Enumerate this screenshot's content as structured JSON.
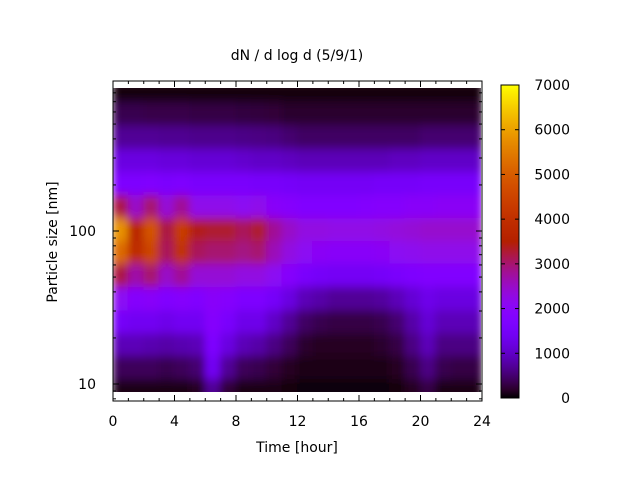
{
  "chart_data": {
    "type": "heatmap",
    "title": "dN / d log d (5/9/1)",
    "xlabel": "Time [hour]",
    "ylabel": "Particle size [nm]",
    "xlim": [
      0,
      24
    ],
    "ylim": [
      8,
      900
    ],
    "yscale": "log",
    "x_ticks": [
      "0",
      "4",
      "8",
      "12",
      "16",
      "20",
      "24"
    ],
    "y_ticks": [
      "10",
      "100"
    ],
    "colorbar": {
      "range": [
        0,
        7000
      ],
      "ticks": [
        "0",
        "1000",
        "2000",
        "3000",
        "4000",
        "5000",
        "6000",
        "7000"
      ],
      "palette": "black-purple-red-orange-yellow"
    },
    "time_bins_hour_start": [
      0,
      1,
      2,
      3,
      4,
      5,
      6,
      7,
      8,
      9,
      10,
      11,
      12,
      13,
      14,
      15,
      16,
      17,
      18,
      19,
      20,
      21,
      22,
      23
    ],
    "size_bins_nm": [
      818,
      577,
      407,
      287,
      203,
      143,
      101,
      72,
      51,
      36,
      25,
      18,
      12.7,
      9
    ],
    "values": [
      [
        60,
        60,
        60,
        60,
        60,
        60,
        60,
        60,
        60,
        60,
        60,
        60,
        60,
        60,
        60,
        60,
        60,
        60,
        60,
        60,
        60,
        60,
        60,
        60
      ],
      [
        350,
        350,
        330,
        330,
        320,
        300,
        300,
        300,
        280,
        270,
        250,
        200,
        200,
        200,
        200,
        200,
        200,
        200,
        200,
        200,
        200,
        200,
        200,
        200
      ],
      [
        700,
        700,
        700,
        680,
        680,
        650,
        650,
        650,
        620,
        600,
        580,
        500,
        450,
        450,
        450,
        450,
        450,
        450,
        450,
        450,
        500,
        500,
        500,
        500
      ],
      [
        1200,
        1200,
        1200,
        1150,
        1150,
        1100,
        1100,
        1100,
        1050,
        1000,
        1000,
        950,
        900,
        900,
        900,
        900,
        900,
        900,
        950,
        950,
        1000,
        1000,
        1000,
        1000
      ],
      [
        1700,
        1700,
        1750,
        1650,
        1700,
        1600,
        1600,
        1600,
        1600,
        1550,
        1550,
        1500,
        1450,
        1450,
        1450,
        1450,
        1450,
        1500,
        1500,
        1500,
        1550,
        1550,
        1550,
        1550
      ],
      [
        3200,
        2500,
        3000,
        2400,
        2800,
        2200,
        2200,
        2200,
        2100,
        2200,
        2000,
        1900,
        1800,
        1800,
        1800,
        1800,
        1850,
        1900,
        1900,
        2000,
        2000,
        2050,
        2050,
        2050
      ],
      [
        5800,
        3700,
        4800,
        3200,
        4300,
        3400,
        3300,
        3300,
        3100,
        3300,
        2800,
        2500,
        2300,
        2300,
        2250,
        2250,
        2250,
        2300,
        2350,
        2400,
        2450,
        2450,
        2450,
        2450
      ],
      [
        5200,
        3900,
        4500,
        3100,
        4000,
        3100,
        3000,
        3000,
        2900,
        3000,
        2600,
        2300,
        2100,
        2050,
        2000,
        2000,
        2000,
        2050,
        2100,
        2150,
        2200,
        2200,
        2200,
        2200
      ],
      [
        3200,
        2700,
        3000,
        2500,
        2800,
        2400,
        2400,
        2400,
        2300,
        2300,
        2100,
        1900,
        1600,
        1500,
        1450,
        1450,
        1450,
        1500,
        1600,
        1700,
        1800,
        1800,
        1800,
        1800
      ],
      [
        2100,
        1900,
        2000,
        1800,
        1900,
        1800,
        2000,
        1900,
        1700,
        1700,
        1500,
        1200,
        900,
        800,
        700,
        700,
        700,
        750,
        900,
        1100,
        1300,
        1200,
        1200,
        1200
      ],
      [
        1500,
        1400,
        1400,
        1300,
        1400,
        1400,
        1900,
        1600,
        1300,
        1300,
        1000,
        700,
        450,
        350,
        300,
        300,
        300,
        350,
        500,
        800,
        1100,
        900,
        900,
        900
      ],
      [
        900,
        900,
        850,
        800,
        850,
        900,
        1700,
        1200,
        900,
        800,
        600,
        400,
        200,
        150,
        150,
        150,
        150,
        200,
        300,
        600,
        900,
        600,
        600,
        600
      ],
      [
        400,
        400,
        400,
        350,
        400,
        500,
        1400,
        700,
        400,
        350,
        250,
        150,
        100,
        80,
        80,
        80,
        80,
        100,
        150,
        350,
        600,
        350,
        300,
        300
      ],
      [
        100,
        100,
        100,
        100,
        100,
        150,
        700,
        250,
        100,
        100,
        80,
        50,
        30,
        30,
        30,
        30,
        30,
        30,
        50,
        150,
        300,
        100,
        100,
        100
      ]
    ]
  }
}
